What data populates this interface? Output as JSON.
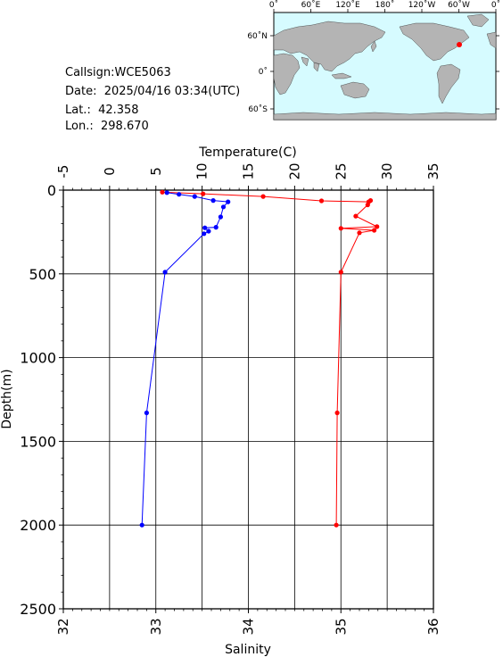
{
  "station": {
    "callsign_label": "Callsign:",
    "callsign": "WCE5063",
    "date_label": "Date:",
    "date": "2025/04/16 03:34(UTC)",
    "lat_label": "Lat.:",
    "lat": "42.358",
    "lon_label": "Lon.:",
    "lon": "298.670"
  },
  "map": {
    "lon_ticks": [
      "0˚",
      "60˚E",
      "120˚E",
      "180˚",
      "120˚W",
      "60˚W",
      "0˚"
    ],
    "lat_ticks": [
      "60˚N",
      "0˚",
      "60˚S"
    ],
    "ocean_color": "#d6fbff",
    "land_color": "#b4b4b4",
    "marker_color": "#ff0000"
  },
  "chart_data": {
    "type": "line",
    "ylabel": "Depth(m)",
    "ylim": [
      2500,
      0
    ],
    "y_ticks": [
      0,
      500,
      1000,
      1500,
      2000,
      2500
    ],
    "grid": true,
    "top_axis": {
      "label": "Temperature(C)",
      "range": [
        -5,
        35
      ],
      "ticks": [
        -5,
        0,
        5,
        10,
        15,
        20,
        25,
        30,
        35
      ]
    },
    "bottom_axis": {
      "label": "Salinity",
      "range": [
        32,
        36
      ],
      "ticks": [
        32,
        33,
        34,
        35,
        36
      ]
    },
    "series": [
      {
        "quantity": "temperature",
        "axis": "top",
        "color": "#ff0000",
        "points": [
          [
            5.7,
            12
          ],
          [
            10.1,
            22
          ],
          [
            16.6,
            38
          ],
          [
            22.9,
            64
          ],
          [
            28.0,
            70
          ],
          [
            28.2,
            62
          ],
          [
            27.9,
            88
          ],
          [
            26.6,
            155
          ],
          [
            28.9,
            218
          ],
          [
            25.0,
            228
          ],
          [
            28.6,
            240
          ],
          [
            27.0,
            255
          ],
          [
            25.0,
            490
          ],
          [
            24.6,
            1330
          ],
          [
            24.5,
            2000
          ]
        ]
      },
      {
        "quantity": "salinity",
        "axis": "bottom",
        "color": "#0000ff",
        "points": [
          [
            33.12,
            15
          ],
          [
            33.25,
            25
          ],
          [
            33.42,
            38
          ],
          [
            33.62,
            62
          ],
          [
            33.78,
            70
          ],
          [
            33.73,
            100
          ],
          [
            33.7,
            160
          ],
          [
            33.65,
            222
          ],
          [
            33.53,
            225
          ],
          [
            33.57,
            245
          ],
          [
            33.52,
            260
          ],
          [
            33.1,
            490
          ],
          [
            32.9,
            1330
          ],
          [
            32.85,
            2000
          ]
        ]
      }
    ]
  }
}
